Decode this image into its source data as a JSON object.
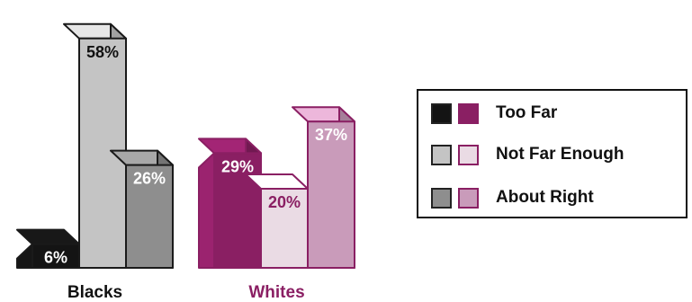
{
  "chart_data": {
    "type": "bar",
    "style": "3d-grouped",
    "categories": [
      "Blacks",
      "Whites"
    ],
    "series": [
      {
        "name": "Too Far",
        "values": [
          6,
          29
        ]
      },
      {
        "name": "Not Far Enough",
        "values": [
          58,
          20
        ]
      },
      {
        "name": "About Right",
        "values": [
          26,
          37
        ]
      }
    ],
    "value_labels": {
      "Blacks": [
        "6%",
        "58%",
        "26%"
      ],
      "Whites": [
        "29%",
        "20%",
        "37%"
      ]
    },
    "unit": "%",
    "legend": {
      "placement": "right",
      "entries": [
        "Too Far",
        "Not Far Enough",
        "About Right"
      ]
    },
    "colors": {
      "Blacks": [
        "#141414",
        "#c4c4c4",
        "#8e8e8e"
      ],
      "Whites": [
        "#8a1f63",
        "#eadbe4",
        "#c99bba"
      ],
      "category_label": {
        "Blacks": "#111111",
        "Whites": "#8a1f63"
      }
    }
  }
}
